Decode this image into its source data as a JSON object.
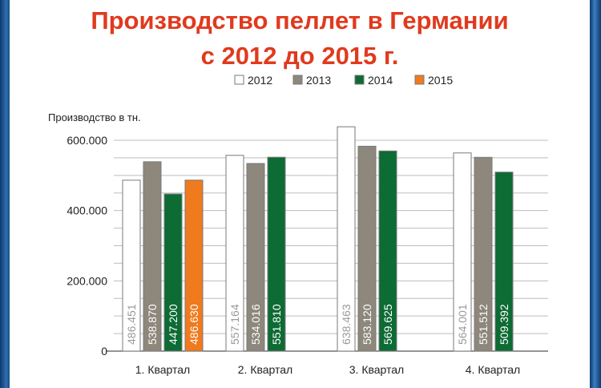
{
  "chart_data": {
    "type": "bar",
    "title": [
      "Производство пеллет в Германии",
      "с 2012 до 2015 г."
    ],
    "ylabel": "Производство в тн.",
    "xlabel": "",
    "categories": [
      "1. Квартал",
      "2. Квартал",
      "3. Квартал",
      "4. Квартал"
    ],
    "ylim": [
      0,
      620000
    ],
    "yticks": [
      0,
      200000,
      400000,
      600000
    ],
    "ytick_labels": [
      "0",
      "200.000",
      "400.000",
      "600.000"
    ],
    "grid": true,
    "legend_position": "top",
    "series": [
      {
        "name": "2012",
        "color": "#ffffff",
        "label_color": "#9a9a9a",
        "values": [
          486451,
          557164,
          638463,
          564001
        ],
        "labels": [
          "486.451",
          "557.164",
          "638.463",
          "564.001"
        ]
      },
      {
        "name": "2013",
        "color": "#8d877c",
        "label_color": "#ffffff",
        "values": [
          538870,
          534016,
          583120,
          551512
        ],
        "labels": [
          "538.870",
          "534.016",
          "583.120",
          "551.512"
        ]
      },
      {
        "name": "2014",
        "color": "#0d6b34",
        "label_color": "#ffffff",
        "values": [
          447200,
          551810,
          569625,
          509392
        ],
        "labels": [
          "447.200",
          "551.810",
          "569.625",
          "509.392"
        ]
      },
      {
        "name": "2015",
        "color": "#f07a1e",
        "label_color": "#ffffff",
        "values": [
          486630,
          null,
          null,
          null
        ],
        "labels": [
          "486.630",
          null,
          null,
          null
        ]
      }
    ]
  }
}
